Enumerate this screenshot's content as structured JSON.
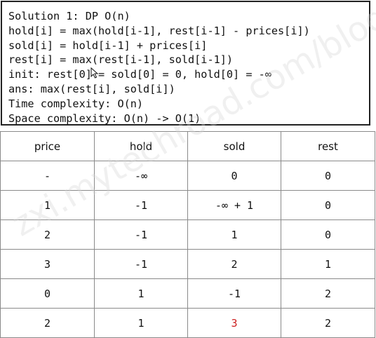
{
  "code": {
    "lines": [
      "Solution 1: DP O(n)",
      "hold[i] = max(hold[i-1], rest[i-1] - prices[i])",
      "sold[i] = hold[i-1] + prices[i]",
      "rest[i] = max(rest[i-1], sold[i-1])",
      "init: rest[0] = sold[0] = 0, hold[0] = -∞",
      "ans: max(rest[i], sold[i])",
      "Time complexity: O(n)",
      "Space complexity: O(n) -> O(1)"
    ]
  },
  "watermark": "zxi.mytechroad.com/blog/",
  "table": {
    "headers": [
      "price",
      "hold",
      "sold",
      "rest"
    ],
    "rows": [
      [
        "-",
        "-∞",
        "0",
        "0"
      ],
      [
        "1",
        "-1",
        "-∞ + 1",
        "0"
      ],
      [
        "2",
        "-1",
        "1",
        "0"
      ],
      [
        "3",
        "-1",
        "2",
        "1"
      ],
      [
        "0",
        "1",
        "-1",
        "2"
      ],
      [
        "2",
        "1",
        "3",
        "2"
      ]
    ],
    "highlight_color": "#cc1f1f"
  }
}
